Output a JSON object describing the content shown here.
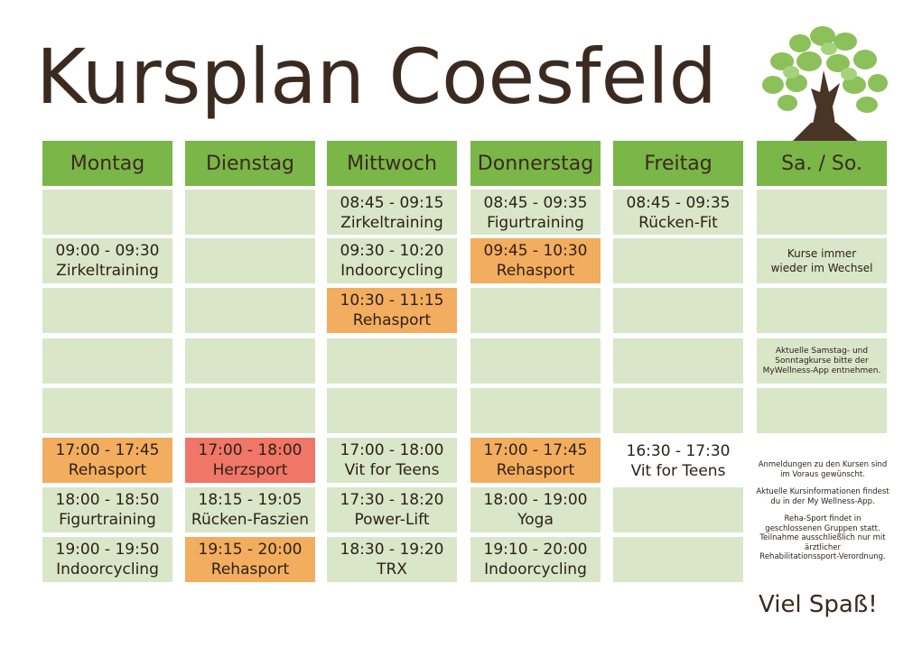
{
  "title": "Kursplan Coesfeld",
  "colors": {
    "header_green": "#7ab648",
    "cell_green": "#d9e6c8",
    "orange": "#f2ad5f",
    "red": "#f07668",
    "text_brown": "#3b2a1f"
  },
  "logo": "tree-icon",
  "days": [
    "Montag",
    "Dienstag",
    "Mittwoch",
    "Donnerstag",
    "Freitag",
    "Sa. / So."
  ],
  "schedule": {
    "montag": {
      "r2": {
        "time": "09:00 - 09:30",
        "name": "Zirkeltraining"
      },
      "r6": {
        "time": "17:00 - 17:45",
        "name": "Rehasport"
      },
      "r7": {
        "time": "18:00 - 18:50",
        "name": "Figurtraining"
      },
      "r8": {
        "time": "19:00 - 19:50",
        "name": "Indoorcycling"
      }
    },
    "dienstag": {
      "r6": {
        "time": "17:00 - 18:00",
        "name": "Herzsport"
      },
      "r7": {
        "time": "18:15 - 19:05",
        "name": "Rücken-Faszien"
      },
      "r8": {
        "time": "19:15 - 20:00",
        "name": "Rehasport"
      }
    },
    "mittwoch": {
      "r1": {
        "time": "08:45 - 09:15",
        "name": "Zirkeltraining"
      },
      "r2": {
        "time": "09:30 - 10:20",
        "name": "Indoorcycling"
      },
      "r3": {
        "time": "10:30 - 11:15",
        "name": "Rehasport"
      },
      "r6": {
        "time": "17:00 - 18:00",
        "name": "Vit for Teens"
      },
      "r7": {
        "time": "17:30 - 18:20",
        "name": "Power-Lift"
      },
      "r8": {
        "time": "18:30 - 19:20",
        "name": "TRX"
      }
    },
    "donnerstag": {
      "r1": {
        "time": "08:45 - 09:35",
        "name": "Figurtraining"
      },
      "r2": {
        "time": "09:45 - 10:30",
        "name": "Rehasport"
      },
      "r6": {
        "time": "17:00 - 17:45",
        "name": "Rehasport"
      },
      "r7": {
        "time": "18:00 - 19:00",
        "name": "Yoga"
      },
      "r8": {
        "time": "19:10 - 20:00",
        "name": "Indoorcycling"
      }
    },
    "freitag": {
      "r1": {
        "time": "08:45 - 09:35",
        "name": "Rücken-Fit"
      },
      "r6": {
        "time": "16:30 - 17:30",
        "name": "Vit for Teens"
      }
    }
  },
  "weekend": {
    "note1_line1": "Kurse immer",
    "note1_line2": "wieder im Wechsel",
    "note2_line1": "Aktuelle Samstag- und",
    "note2_line2": "Sonntagkurse bitte der",
    "note2_line3": "MyWellness-App entnehmen."
  },
  "info": {
    "p1_l1": "Anmeldungen zu den Kursen sind",
    "p1_l2": "im Voraus gewünscht.",
    "p2_l1": "Aktuelle Kursinformationen findest",
    "p2_l2": "du in der My Wellness-App.",
    "p3_l1": "Reha-Sport findet in",
    "p3_l2": "geschlossenen Gruppen statt.",
    "p3_l3": "Teilnahme ausschließlich nur mit",
    "p3_l4": "ärztlicher",
    "p3_l5": "Rehabilitationssport-Verordnung."
  },
  "footer": "Viel Spaß!"
}
